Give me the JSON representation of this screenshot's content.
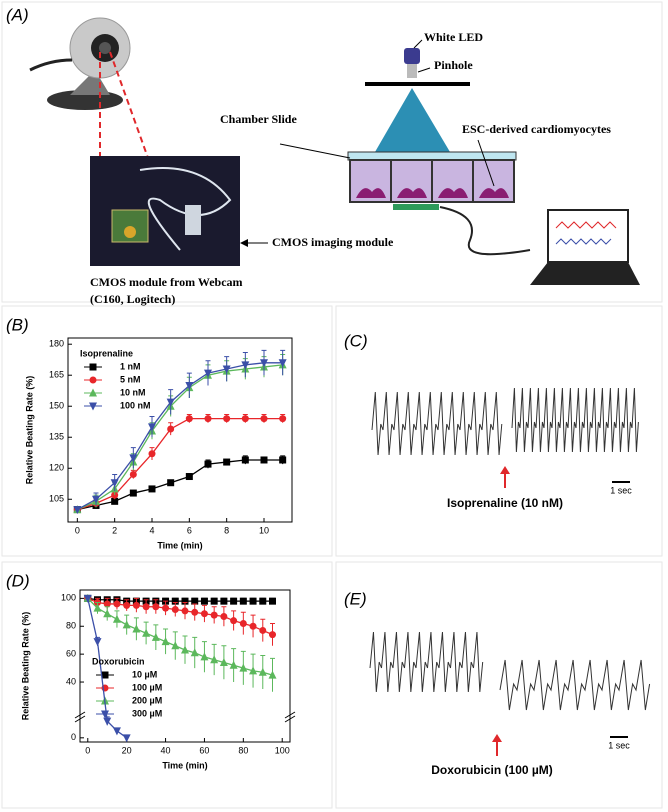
{
  "panel_labels": [
    "(A)",
    "(B)",
    "(C)",
    "(D)",
    "(E)"
  ],
  "diagram": {
    "white_led": "White LED",
    "pinhole": "Pinhole",
    "chamber_slide": "Chamber Slide",
    "cells": "ESC-derived cardiomyocytes",
    "cmos_module": "CMOS imaging module",
    "webcam_caption": [
      "CMOS module from Webcam",
      "(C160, Logitech)"
    ]
  },
  "traces": [
    {
      "annotation": "Isoprenaline (10 nM)",
      "scale": "1 sec"
    },
    {
      "annotation": "Doxorubicin (100 µM)",
      "scale": "1 sec"
    }
  ],
  "chart_data": [
    {
      "type": "line",
      "xlabel": "Time (min)",
      "ylabel": "Relative Beating Rate (%)",
      "legend_title": "Isoprenaline",
      "xlim": [
        -0.5,
        11.5
      ],
      "xticks": [
        0,
        2,
        4,
        6,
        8,
        10
      ],
      "ylim": [
        94,
        183
      ],
      "yticks": [
        105,
        120,
        135,
        150,
        165,
        180
      ],
      "series": [
        {
          "name": "1 nM",
          "color": "#000000",
          "marker": "square",
          "x": [
            0,
            1,
            2,
            3,
            4,
            5,
            6,
            7,
            8,
            9,
            10,
            11
          ],
          "values": [
            100,
            102,
            104,
            108,
            110,
            113,
            116,
            122,
            123,
            124,
            124,
            124
          ],
          "errors": [
            1,
            1,
            1,
            1,
            1,
            1,
            1,
            2,
            1,
            2,
            1,
            2
          ]
        },
        {
          "name": "5 nM",
          "color": "#e8262a",
          "marker": "circle",
          "x": [
            0,
            1,
            2,
            3,
            4,
            5,
            6,
            7,
            8,
            9,
            10,
            11
          ],
          "values": [
            100,
            103,
            107,
            117,
            127,
            139,
            144,
            144,
            144,
            144,
            144,
            144
          ],
          "errors": [
            1,
            2,
            2,
            2,
            3,
            3,
            2,
            2,
            2,
            2,
            2,
            2
          ]
        },
        {
          "name": "10 nM",
          "color": "#5cb85c",
          "marker": "triangle-up",
          "x": [
            0,
            1,
            2,
            3,
            4,
            5,
            6,
            7,
            8,
            9,
            10,
            11
          ],
          "values": [
            100,
            104,
            110,
            123,
            138,
            150,
            159,
            165,
            167,
            168,
            169,
            170
          ],
          "errors": [
            1,
            3,
            3,
            4,
            4,
            5,
            5,
            5,
            5,
            5,
            5,
            5
          ]
        },
        {
          "name": "100 nM",
          "color": "#3b4fa8",
          "marker": "triangle-down",
          "x": [
            0,
            1,
            2,
            3,
            4,
            5,
            6,
            7,
            8,
            9,
            10,
            11
          ],
          "values": [
            100,
            105,
            113,
            125,
            140,
            152,
            160,
            166,
            168,
            170,
            171,
            171
          ],
          "errors": [
            1,
            3,
            4,
            5,
            5,
            6,
            6,
            6,
            6,
            6,
            6,
            6
          ]
        }
      ]
    },
    {
      "type": "line",
      "xlabel": "Time (min)",
      "ylabel": "Relative Beating Rate (%)",
      "legend_title": "Doxorubicin",
      "xlim": [
        -4,
        104
      ],
      "xticks": [
        0,
        20,
        40,
        60,
        80,
        100
      ],
      "ylim": [
        -3,
        106
      ],
      "yticks": [
        0,
        40,
        60,
        80,
        100
      ],
      "series": [
        {
          "name": "10 µM",
          "color": "#000000",
          "marker": "square",
          "x": [
            0,
            5,
            10,
            15,
            20,
            25,
            30,
            35,
            40,
            45,
            50,
            55,
            60,
            65,
            70,
            75,
            80,
            85,
            90,
            95
          ],
          "values": [
            100,
            99,
            99,
            99,
            98,
            98,
            98,
            98,
            98,
            98,
            98,
            98,
            98,
            98,
            98,
            98,
            98,
            98,
            98,
            98
          ],
          "errors": [
            1,
            2,
            2,
            2,
            2,
            2,
            2,
            2,
            2,
            2,
            2,
            2,
            2,
            2,
            2,
            2,
            2,
            2,
            2,
            2
          ]
        },
        {
          "name": "100 µM",
          "color": "#e8262a",
          "marker": "circle",
          "x": [
            0,
            5,
            10,
            15,
            20,
            25,
            30,
            35,
            40,
            45,
            50,
            55,
            60,
            65,
            70,
            75,
            80,
            85,
            90,
            95
          ],
          "values": [
            100,
            97,
            96,
            96,
            95,
            95,
            94,
            94,
            93,
            92,
            91,
            90,
            89,
            88,
            87,
            84,
            82,
            80,
            77,
            74
          ],
          "errors": [
            1,
            3,
            4,
            4,
            4,
            5,
            5,
            5,
            5,
            5,
            6,
            6,
            6,
            6,
            7,
            7,
            8,
            8,
            8,
            8
          ]
        },
        {
          "name": "200 µM",
          "color": "#5cb85c",
          "marker": "triangle-up",
          "x": [
            0,
            5,
            10,
            15,
            20,
            25,
            30,
            35,
            40,
            45,
            50,
            55,
            60,
            65,
            70,
            75,
            80,
            85,
            90,
            95
          ],
          "values": [
            100,
            93,
            89,
            85,
            81,
            78,
            75,
            72,
            69,
            66,
            63,
            61,
            58,
            56,
            54,
            52,
            50,
            48,
            47,
            45
          ],
          "errors": [
            1,
            4,
            5,
            6,
            7,
            8,
            8,
            9,
            9,
            10,
            10,
            11,
            11,
            11,
            12,
            12,
            12,
            12,
            12,
            12
          ]
        },
        {
          "name": "300 µM",
          "color": "#3b4fa8",
          "marker": "triangle-down",
          "x": [
            0,
            5,
            10,
            15,
            20
          ],
          "values": [
            100,
            69,
            12,
            5,
            0
          ],
          "errors": [
            1,
            3,
            3,
            2,
            1
          ]
        }
      ]
    }
  ]
}
